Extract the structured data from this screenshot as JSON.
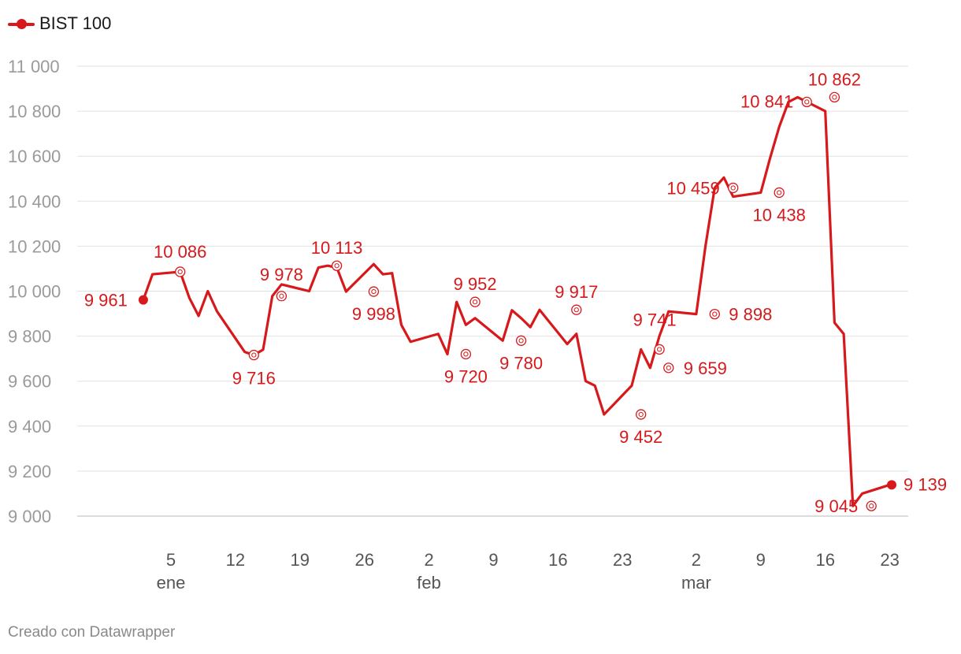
{
  "legend": {
    "label": "BIST 100",
    "color": "#d7191c"
  },
  "footer": {
    "credit": "Creado con Datawrapper"
  },
  "chart_data": {
    "type": "line",
    "title": "",
    "xlabel": "",
    "ylabel": "",
    "ylim": [
      9000,
      11000
    ],
    "y_ticks": [
      "9 000",
      "9 200",
      "9 400",
      "9 600",
      "9 800",
      "10 000",
      "10 200",
      "10 400",
      "10 600",
      "10 800",
      "11 000"
    ],
    "x_ticks": [
      {
        "date": "2020-01-05",
        "day": "5",
        "month": "ene"
      },
      {
        "date": "2020-01-12",
        "day": "12"
      },
      {
        "date": "2020-01-19",
        "day": "19"
      },
      {
        "date": "2020-01-26",
        "day": "26"
      },
      {
        "date": "2020-02-02",
        "day": "2",
        "month": "feb"
      },
      {
        "date": "2020-02-09",
        "day": "9"
      },
      {
        "date": "2020-02-16",
        "day": "16"
      },
      {
        "date": "2020-02-23",
        "day": "23"
      },
      {
        "date": "2020-03-02",
        "day": "2",
        "month": "mar"
      },
      {
        "date": "2020-03-09",
        "day": "9"
      },
      {
        "date": "2020-03-16",
        "day": "16"
      },
      {
        "date": "2020-03-23",
        "day": "23"
      }
    ],
    "xlim": [
      "2020-01-01",
      "2020-03-24"
    ],
    "grid": true,
    "legend_position": "top-left",
    "series": [
      {
        "name": "BIST 100",
        "color": "#d7191c",
        "x": [
          "2020-01-02",
          "2020-01-03",
          "2020-01-06",
          "2020-01-07",
          "2020-01-08",
          "2020-01-09",
          "2020-01-10",
          "2020-01-13",
          "2020-01-14",
          "2020-01-15",
          "2020-01-16",
          "2020-01-17",
          "2020-01-20",
          "2020-01-21",
          "2020-01-22",
          "2020-01-23",
          "2020-01-24",
          "2020-01-27",
          "2020-01-28",
          "2020-01-29",
          "2020-01-30",
          "2020-01-31",
          "2020-02-03",
          "2020-02-04",
          "2020-02-05",
          "2020-02-06",
          "2020-02-07",
          "2020-02-10",
          "2020-02-11",
          "2020-02-12",
          "2020-02-13",
          "2020-02-14",
          "2020-02-17",
          "2020-02-18",
          "2020-02-19",
          "2020-02-20",
          "2020-02-21",
          "2020-02-24",
          "2020-02-25",
          "2020-02-26",
          "2020-02-27",
          "2020-02-28",
          "2020-03-02",
          "2020-03-03",
          "2020-03-04",
          "2020-03-05",
          "2020-03-06",
          "2020-03-09",
          "2020-03-10",
          "2020-03-11",
          "2020-03-12",
          "2020-03-13",
          "2020-03-16",
          "2020-03-17",
          "2020-03-18",
          "2020-03-19",
          "2020-03-20",
          "2020-03-23"
        ],
        "values": [
          9961,
          10075,
          10086,
          9970,
          9890,
          10000,
          9910,
          9730,
          9716,
          9740,
          9978,
          10030,
          10000,
          10105,
          10113,
          10105,
          9998,
          10120,
          10075,
          10080,
          9850,
          9775,
          9810,
          9720,
          9952,
          9850,
          9880,
          9780,
          9915,
          9880,
          9840,
          9917,
          9765,
          9810,
          9600,
          9580,
          9452,
          9580,
          9741,
          9659,
          9800,
          9910,
          9898,
          10200,
          10459,
          10505,
          10420,
          10438,
          10590,
          10730,
          10841,
          10862,
          10800,
          9860,
          9810,
          9045,
          9100,
          9139
        ],
        "point_labels": [
          {
            "date": "2020-01-02",
            "value": 9961,
            "text": "9 961"
          },
          {
            "date": "2020-01-06",
            "value": 10086,
            "text": "10 086"
          },
          {
            "date": "2020-01-14",
            "value": 9716,
            "text": "9 716"
          },
          {
            "date": "2020-01-17",
            "value": 9978,
            "text": "9 978"
          },
          {
            "date": "2020-01-23",
            "value": 10113,
            "text": "10 113"
          },
          {
            "date": "2020-01-27",
            "value": 9998,
            "text": "9 998"
          },
          {
            "date": "2020-02-06",
            "value": 9720,
            "text": "9 720"
          },
          {
            "date": "2020-02-07",
            "value": 9952,
            "text": "9 952"
          },
          {
            "date": "2020-02-12",
            "value": 9780,
            "text": "9 780"
          },
          {
            "date": "2020-02-18",
            "value": 9917,
            "text": "9 917"
          },
          {
            "date": "2020-02-25",
            "value": 9452,
            "text": "9 452"
          },
          {
            "date": "2020-02-27",
            "value": 9741,
            "text": "9 741"
          },
          {
            "date": "2020-02-28",
            "value": 9659,
            "text": "9 659"
          },
          {
            "date": "2020-03-04",
            "value": 9898,
            "text": "9 898"
          },
          {
            "date": "2020-03-06",
            "value": 10459,
            "text": "10 459"
          },
          {
            "date": "2020-03-11",
            "value": 10438,
            "text": "10 438"
          },
          {
            "date": "2020-03-14",
            "value": 10841,
            "text": "10 841"
          },
          {
            "date": "2020-03-17",
            "value": 10862,
            "text": "10 862"
          },
          {
            "date": "2020-03-21",
            "value": 9045,
            "text": "9 045"
          },
          {
            "date": "2020-03-24",
            "value": 9139,
            "text": "9 139"
          }
        ]
      }
    ]
  }
}
